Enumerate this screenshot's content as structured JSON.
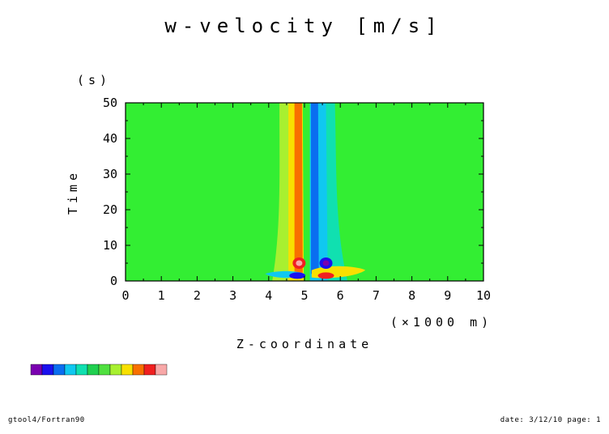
{
  "chart_data": {
    "type": "heatmap",
    "title": "w-velocity [m/s]",
    "xlabel": "Z-coordinate",
    "x_unit": "(×1000 m)",
    "ylabel": "Time",
    "y_unit": "(s)",
    "xlim": [
      0,
      10
    ],
    "ylim": [
      0,
      50
    ],
    "x_ticks": [
      "0",
      "1",
      "2",
      "3",
      "4",
      "5",
      "6",
      "7",
      "8",
      "9",
      "10"
    ],
    "y_ticks": [
      "0",
      "10",
      "20",
      "30",
      "40",
      "50"
    ],
    "background_color": "#33ee33",
    "color_scale": [
      "#7a00b0",
      "#1a10ee",
      "#0a6ef0",
      "#10c8f0",
      "#10e0b0",
      "#20d050",
      "#50e040",
      "#a8f030",
      "#f8e000",
      "#f87000",
      "#f02020",
      "#f8a8a8"
    ],
    "features": [
      {
        "region": "x 4.3-4.7",
        "sign": "positive",
        "level": "moderate",
        "t": [
          0,
          50
        ]
      },
      {
        "region": "x 4.75-4.95",
        "sign": "positive",
        "level": "strong",
        "t": [
          0,
          50
        ]
      },
      {
        "region": "x 5.15-5.35",
        "sign": "negative",
        "level": "strong",
        "t": [
          0,
          50
        ]
      },
      {
        "region": "x 5.35-5.85",
        "sign": "negative",
        "level": "moderate",
        "t": [
          0,
          50
        ]
      },
      {
        "region": "x 4.7-5.0",
        "sign": "positive",
        "level": "peak",
        "t": [
          2,
          8
        ]
      },
      {
        "region": "x 5.2-5.5",
        "sign": "negative",
        "level": "peak",
        "t": [
          2,
          8
        ]
      },
      {
        "region": "x 4.3-5.0",
        "sign": "negative",
        "level": "peak",
        "t": [
          0,
          2
        ]
      },
      {
        "region": "x 5.3-5.9",
        "sign": "positive",
        "level": "peak",
        "t": [
          0,
          2
        ]
      }
    ]
  },
  "footer": {
    "left": "gtool4/Fortran90",
    "right": "date: 3/12/10 page: 1"
  }
}
